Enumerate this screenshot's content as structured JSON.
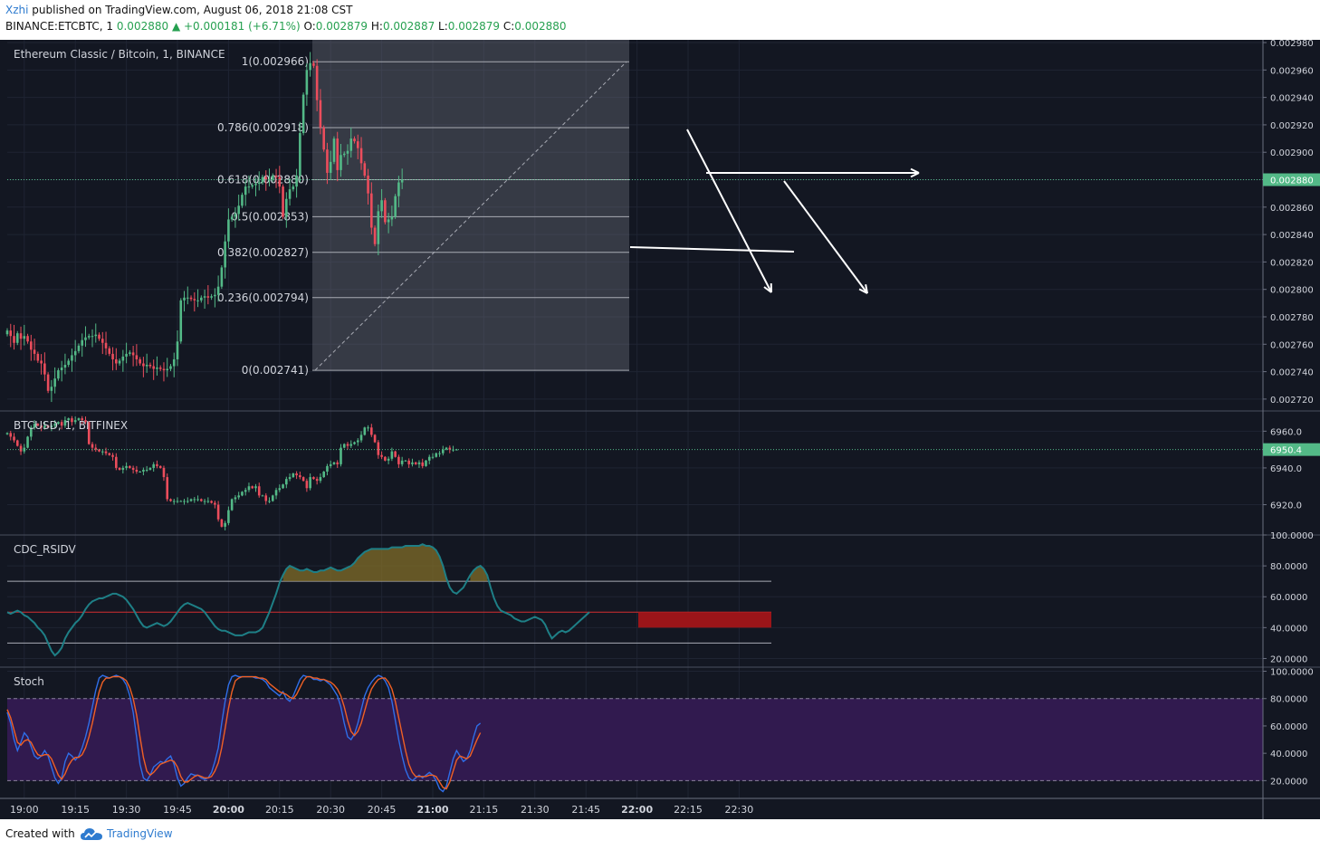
{
  "header": {
    "author": "Xzhi",
    "published_text": "published on TradingView.com, August 06, 2018 21:08 CST",
    "symbol_line": "BINANCE:ETCBTC, 1",
    "last_price": "0.002880",
    "change_text": "▲ +0.000181 (+6.71%)",
    "o_label": "O:",
    "o_value": "0.002879",
    "h_label": "H:",
    "h_value": "0.002887",
    "l_label": "L:",
    "l_value": "0.002879",
    "c_label": "C:",
    "c_value": "0.002880"
  },
  "footer": {
    "created_with": "Created with",
    "brand": "TradingView"
  },
  "chart_data": [
    {
      "type": "candlestick",
      "title": "Ethereum Classic / Bitcoin, 1, BINANCE",
      "ylim": [
        0.002712,
        0.002982
      ],
      "y_ticks": [
        "0.002980",
        "0.002960",
        "0.002940",
        "0.002920",
        "0.002900",
        "0.002880",
        "0.002860",
        "0.002840",
        "0.002820",
        "0.002800",
        "0.002780",
        "0.002760",
        "0.002740",
        "0.002720"
      ],
      "last_price_label": "0.002880",
      "fib_levels": [
        {
          "label": "1(0.002966)",
          "value": 0.002966
        },
        {
          "label": "0.786(0.002918)",
          "value": 0.002918
        },
        {
          "label": "0.618(0.002880)",
          "value": 0.00288
        },
        {
          "label": "0.5(0.002853)",
          "value": 0.002853
        },
        {
          "label": "0.382(0.002827)",
          "value": 0.002827
        },
        {
          "label": "0.236(0.002794)",
          "value": 0.002794
        },
        {
          "label": "0(0.002741)",
          "value": 0.002741
        }
      ],
      "closes": [
        0.00277,
        0.002766,
        0.002761,
        0.002768,
        0.002764,
        0.002766,
        0.002762,
        0.002756,
        0.002753,
        0.002748,
        0.002746,
        0.002738,
        0.002726,
        0.002729,
        0.002735,
        0.002741,
        0.002743,
        0.002745,
        0.002748,
        0.002752,
        0.002755,
        0.002759,
        0.002763,
        0.002765,
        0.002766,
        0.002766,
        0.002767,
        0.002764,
        0.002761,
        0.002757,
        0.002753,
        0.002749,
        0.002746,
        0.002748,
        0.002751,
        0.002753,
        0.002754,
        0.002752,
        0.002749,
        0.002746,
        0.002744,
        0.002745,
        0.002744,
        0.002742,
        0.002743,
        0.002742,
        0.002741,
        0.002742,
        0.002744,
        0.002749,
        0.002762,
        0.002792,
        0.002794,
        0.002794,
        0.002793,
        0.002792,
        0.002792,
        0.002794,
        0.002795,
        0.002794,
        0.002795,
        0.002796,
        0.002802,
        0.002816,
        0.002835,
        0.002851,
        0.002853,
        0.002855,
        0.002861,
        0.002869,
        0.002875,
        0.002875,
        0.002876,
        0.002877,
        0.002878,
        0.002882,
        0.00288,
        0.00288,
        0.002883,
        0.002882,
        0.002875,
        0.002853,
        0.002866,
        0.002873,
        0.002875,
        0.002883,
        0.002914,
        0.002942,
        0.00296,
        0.002965,
        0.002963,
        0.002938,
        0.002918,
        0.002902,
        0.002885,
        0.002893,
        0.00291,
        0.002887,
        0.002898,
        0.002899,
        0.002901,
        0.00291,
        0.002908,
        0.002903,
        0.002892,
        0.002883,
        0.00287,
        0.002845,
        0.002833,
        0.002857,
        0.002865,
        0.002849,
        0.002851,
        0.002853,
        0.002868,
        0.002878,
        0.00288
      ],
      "start_time": "18:55",
      "interval_minutes": 1,
      "x_ticks": [
        "19:00",
        "19:15",
        "19:30",
        "19:45",
        "20:00",
        "20:15",
        "20:30",
        "20:45",
        "21:00",
        "21:15",
        "21:30",
        "21:45",
        "22:00",
        "22:15",
        "22:30"
      ]
    },
    {
      "type": "candlestick",
      "title": "BTCUSD, 1, BITFINEX",
      "ylim": [
        6904,
        6971
      ],
      "y_ticks": [
        "6960.0",
        "6940.0",
        "6920.0"
      ],
      "last_price_label": "6950.4",
      "closes": [
        6959,
        6957,
        6955,
        6952,
        6949,
        6951,
        6957,
        6962,
        6964,
        6963,
        6962,
        6963,
        6962,
        6963,
        6964,
        6965,
        6963,
        6966,
        6967,
        6965,
        6966,
        6967,
        6966,
        6965,
        6953,
        6951,
        6950,
        6949,
        6949,
        6948,
        6947,
        6946,
        6940,
        6939,
        6940,
        6941,
        6940,
        6939,
        6938,
        6938,
        6939,
        6939,
        6940,
        6942,
        6941,
        6940,
        6935,
        6923,
        6922,
        6922,
        6922,
        6922,
        6922,
        6922,
        6923,
        6923,
        6923,
        6922,
        6922,
        6922,
        6921,
        6920,
        6912,
        6908,
        6910,
        6917,
        6923,
        6924,
        6925,
        6927,
        6928,
        6930,
        6929,
        6930,
        6925,
        6925,
        6922,
        6922,
        6925,
        6928,
        6929,
        6931,
        6934,
        6935,
        6937,
        6936,
        6935,
        6933,
        6929,
        6935,
        6934,
        6933,
        6935,
        6938,
        6941,
        6942,
        6943,
        6942,
        6951,
        6953,
        6952,
        6953,
        6954,
        6955,
        6958,
        6962,
        6962,
        6958,
        6954,
        6947,
        6946,
        6944,
        6945,
        6949,
        6946,
        6942,
        6944,
        6944,
        6942,
        6943,
        6942,
        6943,
        6941,
        6944,
        6946,
        6946,
        6948,
        6948,
        6950,
        6951,
        6950,
        6950,
        6950
      ]
    },
    {
      "type": "line",
      "title": "CDC_RSIDV",
      "ylim": [
        15,
        100
      ],
      "y_ticks": [
        "100.0000",
        "80.0000",
        "60.0000",
        "40.0000",
        "20.0000"
      ],
      "levels": [
        70,
        50,
        30
      ],
      "values": [
        50,
        49,
        50,
        51,
        50,
        48,
        47,
        45,
        43,
        40,
        38,
        35,
        30,
        25,
        22,
        24,
        27,
        33,
        37,
        40,
        43,
        45,
        48,
        52,
        55,
        57,
        58,
        59,
        59,
        60,
        61,
        62,
        62,
        61,
        60,
        58,
        55,
        52,
        48,
        44,
        41,
        40,
        41,
        42,
        43,
        42,
        41,
        42,
        44,
        47,
        50,
        53,
        55,
        56,
        55,
        54,
        53,
        52,
        50,
        47,
        44,
        41,
        39,
        38,
        38,
        37,
        36,
        35,
        35,
        35,
        36,
        37,
        37,
        37,
        38,
        40,
        45,
        50,
        56,
        62,
        69,
        74,
        78,
        80,
        79,
        78,
        77,
        77,
        78,
        77,
        76,
        76,
        77,
        77,
        78,
        79,
        78,
        77,
        77,
        78,
        79,
        80,
        82,
        85,
        87,
        89,
        90,
        91,
        91,
        91,
        91,
        91,
        91,
        92,
        92,
        92,
        92,
        93,
        93,
        93,
        93,
        93,
        94,
        93,
        93,
        92,
        90,
        86,
        80,
        72,
        66,
        63,
        62,
        64,
        66,
        70,
        74,
        77,
        79,
        80,
        78,
        74,
        66,
        59,
        54,
        51,
        50,
        49,
        48,
        46,
        45,
        44,
        44,
        45,
        46,
        47,
        46,
        45,
        42,
        37,
        33,
        35,
        37,
        38,
        37,
        38,
        40,
        42,
        44,
        46,
        48,
        50
      ]
    },
    {
      "type": "line",
      "title": "Stoch",
      "ylim": [
        7,
        103
      ],
      "y_ticks": [
        "100.0000",
        "80.0000",
        "60.0000",
        "40.0000",
        "20.0000"
      ],
      "levels": [
        80,
        20
      ],
      "series": [
        {
          "values": [
            70,
            62,
            50,
            42,
            48,
            55,
            52,
            45,
            38,
            36,
            38,
            42,
            38,
            30,
            22,
            18,
            22,
            34,
            40,
            38,
            35,
            38,
            44,
            52,
            62,
            74,
            86,
            95,
            97,
            96,
            95,
            96,
            97,
            96,
            94,
            90,
            82,
            70,
            52,
            32,
            22,
            20,
            24,
            30,
            32,
            34,
            33,
            36,
            38,
            32,
            22,
            16,
            18,
            22,
            25,
            24,
            24,
            22,
            21,
            22,
            26,
            34,
            44,
            62,
            78,
            90,
            96,
            97,
            96,
            96,
            96,
            96,
            96,
            95,
            95,
            94,
            92,
            88,
            86,
            84,
            82,
            85,
            80,
            78,
            82,
            88,
            94,
            97,
            96,
            96,
            94,
            94,
            93,
            94,
            92,
            90,
            86,
            82,
            74,
            62,
            52,
            50,
            54,
            62,
            72,
            82,
            88,
            92,
            95,
            97,
            96,
            93,
            88,
            78,
            64,
            50,
            38,
            28,
            22,
            20,
            22,
            24,
            22,
            24,
            26,
            24,
            20,
            14,
            12,
            16,
            26,
            36,
            42,
            38,
            34,
            36,
            42,
            52,
            60,
            62
          ]
        },
        {
          "values": [
            72,
            66,
            57,
            48,
            46,
            49,
            50,
            48,
            43,
            39,
            38,
            39,
            39,
            36,
            30,
            24,
            21,
            25,
            31,
            35,
            37,
            37,
            39,
            44,
            52,
            62,
            74,
            85,
            92,
            95,
            95,
            96,
            96,
            96,
            95,
            93,
            88,
            80,
            68,
            52,
            37,
            27,
            24,
            26,
            29,
            32,
            33,
            34,
            35,
            34,
            30,
            23,
            19,
            19,
            21,
            23,
            24,
            23,
            22,
            22,
            23,
            27,
            33,
            44,
            58,
            73,
            85,
            93,
            95,
            96,
            96,
            96,
            96,
            96,
            95,
            95,
            94,
            91,
            89,
            87,
            85,
            84,
            83,
            81,
            80,
            83,
            88,
            93,
            96,
            96,
            95,
            95,
            94,
            94,
            93,
            92,
            90,
            87,
            82,
            74,
            64,
            56,
            53,
            56,
            62,
            71,
            80,
            87,
            91,
            94,
            95,
            95,
            92,
            87,
            78,
            66,
            54,
            42,
            32,
            26,
            23,
            23,
            23,
            23,
            24,
            24,
            23,
            19,
            15,
            14,
            19,
            27,
            35,
            38,
            37,
            36,
            38,
            44,
            50,
            55
          ]
        }
      ]
    }
  ]
}
